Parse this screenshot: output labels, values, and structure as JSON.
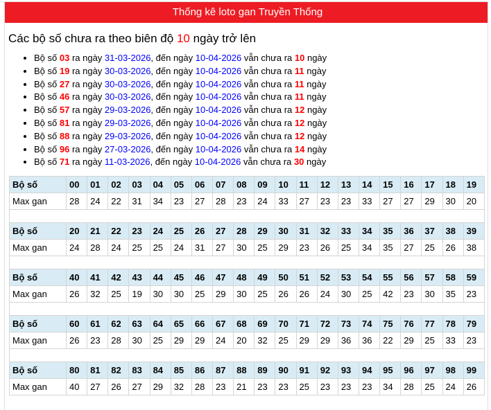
{
  "header": {
    "title": "Thống kê loto gan Truyền Thống"
  },
  "heading": {
    "prefix": "Các bộ số chưa ra theo biên độ ",
    "value": "10",
    "suffix": " ngày trở lên"
  },
  "list_text": {
    "p1": "Bộ số ",
    "p2": " ra ngày ",
    "p3": ", đến ngày ",
    "p4": " vẫn chưa ra ",
    "p5": " ngày"
  },
  "items": [
    {
      "number": "03",
      "from": "31-03-2026",
      "to": "10-04-2026",
      "days": "10"
    },
    {
      "number": "19",
      "from": "30-03-2026",
      "to": "10-04-2026",
      "days": "11"
    },
    {
      "number": "27",
      "from": "30-03-2026",
      "to": "10-04-2026",
      "days": "11"
    },
    {
      "number": "46",
      "from": "30-03-2026",
      "to": "10-04-2026",
      "days": "11"
    },
    {
      "number": "57",
      "from": "29-03-2026",
      "to": "10-04-2026",
      "days": "12"
    },
    {
      "number": "81",
      "from": "29-03-2026",
      "to": "10-04-2026",
      "days": "12"
    },
    {
      "number": "88",
      "from": "29-03-2026",
      "to": "10-04-2026",
      "days": "12"
    },
    {
      "number": "96",
      "from": "27-03-2026",
      "to": "10-04-2026",
      "days": "14"
    },
    {
      "number": "71",
      "from": "11-03-2026",
      "to": "10-04-2026",
      "days": "30"
    }
  ],
  "table": {
    "row_label_number": "Bộ số",
    "row_label_gan": "Max gan",
    "blocks": [
      {
        "numbers": [
          "00",
          "01",
          "02",
          "03",
          "04",
          "05",
          "06",
          "07",
          "08",
          "09",
          "10",
          "11",
          "12",
          "13",
          "14",
          "15",
          "16",
          "17",
          "18",
          "19"
        ],
        "gan": [
          "28",
          "24",
          "22",
          "31",
          "34",
          "23",
          "27",
          "28",
          "23",
          "24",
          "33",
          "27",
          "23",
          "23",
          "33",
          "27",
          "27",
          "29",
          "30",
          "20"
        ]
      },
      {
        "numbers": [
          "20",
          "21",
          "22",
          "23",
          "24",
          "25",
          "26",
          "27",
          "28",
          "29",
          "30",
          "31",
          "32",
          "33",
          "34",
          "35",
          "36",
          "37",
          "38",
          "39"
        ],
        "gan": [
          "24",
          "28",
          "24",
          "25",
          "25",
          "24",
          "31",
          "27",
          "30",
          "25",
          "29",
          "23",
          "26",
          "25",
          "34",
          "35",
          "27",
          "25",
          "26",
          "38"
        ]
      },
      {
        "numbers": [
          "40",
          "41",
          "42",
          "43",
          "44",
          "45",
          "46",
          "47",
          "48",
          "49",
          "50",
          "51",
          "52",
          "53",
          "54",
          "55",
          "56",
          "57",
          "58",
          "59"
        ],
        "gan": [
          "26",
          "32",
          "25",
          "19",
          "30",
          "30",
          "25",
          "29",
          "30",
          "25",
          "26",
          "26",
          "24",
          "30",
          "25",
          "42",
          "23",
          "30",
          "35",
          "23"
        ]
      },
      {
        "numbers": [
          "60",
          "61",
          "62",
          "63",
          "64",
          "65",
          "66",
          "67",
          "68",
          "69",
          "70",
          "71",
          "72",
          "73",
          "74",
          "75",
          "76",
          "77",
          "78",
          "79"
        ],
        "gan": [
          "26",
          "23",
          "28",
          "30",
          "25",
          "29",
          "29",
          "24",
          "20",
          "32",
          "25",
          "29",
          "29",
          "36",
          "36",
          "22",
          "29",
          "25",
          "33",
          "23"
        ]
      },
      {
        "numbers": [
          "80",
          "81",
          "82",
          "83",
          "84",
          "85",
          "86",
          "87",
          "88",
          "89",
          "90",
          "91",
          "92",
          "93",
          "94",
          "95",
          "96",
          "97",
          "98",
          "99"
        ],
        "gan": [
          "40",
          "27",
          "26",
          "27",
          "29",
          "32",
          "28",
          "23",
          "21",
          "23",
          "23",
          "25",
          "23",
          "23",
          "23",
          "34",
          "28",
          "25",
          "24",
          "26"
        ]
      }
    ]
  }
}
